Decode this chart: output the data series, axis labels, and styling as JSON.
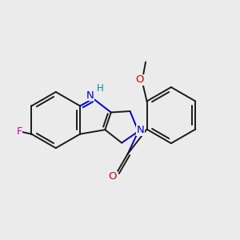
{
  "background_color": "#EBEBEB",
  "bond_color": "#1a1a1a",
  "bond_width": 1.4,
  "figsize": [
    3.0,
    3.0
  ],
  "dpi": 100,
  "xlim": [
    0,
    10
  ],
  "ylim": [
    0,
    10
  ],
  "N_color": "#0000CC",
  "H_color": "#008B8B",
  "F_color": "#CC00CC",
  "O_color": "#CC0000"
}
